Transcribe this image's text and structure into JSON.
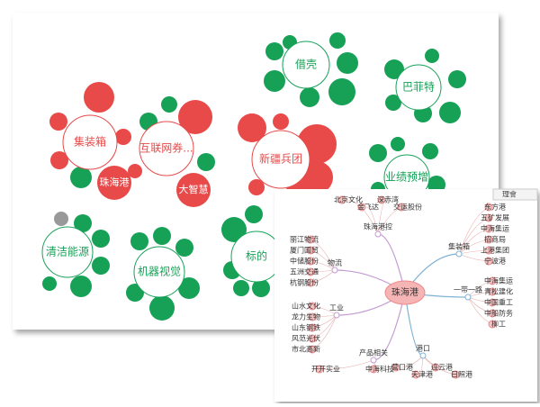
{
  "clusters": [
    {
      "label": "集装箱",
      "color": "#e84a4a",
      "tags": [
        "珠海港"
      ]
    },
    {
      "label": "互联网券...",
      "color": "#e84a4a",
      "tags": [
        "大智慧"
      ]
    },
    {
      "label": "新疆兵团",
      "color": "#e84a4a",
      "tags": []
    },
    {
      "label": "借壳",
      "color": "#16a157",
      "tags": []
    },
    {
      "label": "巴菲特",
      "color": "#16a157",
      "tags": []
    },
    {
      "label": "业绩预增",
      "color": "#16a157",
      "tags": []
    },
    {
      "label": "清洁能源",
      "color": "#16a157",
      "tags": []
    },
    {
      "label": "机器视觉",
      "color": "#16a157",
      "tags": []
    },
    {
      "label": "标的",
      "color": "#16a157",
      "tags": []
    }
  ],
  "mindmap": {
    "center": "珠海港",
    "tab": "理會",
    "branches": [
      {
        "label": "集装箱",
        "leaves": [
          "东方港",
          "五矿发展",
          "中海集运",
          "招商局",
          "上港集团",
          "宁波港"
        ]
      },
      {
        "label": "一带一路",
        "leaves": [
          "中海集运",
          "青松建化",
          "中国重工",
          "中船防务",
          "柳工"
        ]
      },
      {
        "label": "物流",
        "leaves": [
          "丽江物流",
          "厦门国贸",
          "中储股份",
          "五洲交通",
          "杭钢股份"
        ]
      },
      {
        "label": "工业",
        "leaves": [
          "山水文化",
          "龙力生物",
          "山东钢铁",
          "风范光伏",
          "市北高新"
        ]
      },
      {
        "label": "产品相关",
        "leaves": [
          "开开实业",
          "中海科技"
        ]
      },
      {
        "label": "港口",
        "leaves": [
          "营口港",
          "天津港",
          "连云港",
          "日照港"
        ]
      },
      {
        "label": "珠海港控",
        "leaves": [
          "北京文化",
          "金飞达",
          "深赤湾",
          "交运股份"
        ]
      }
    ]
  }
}
